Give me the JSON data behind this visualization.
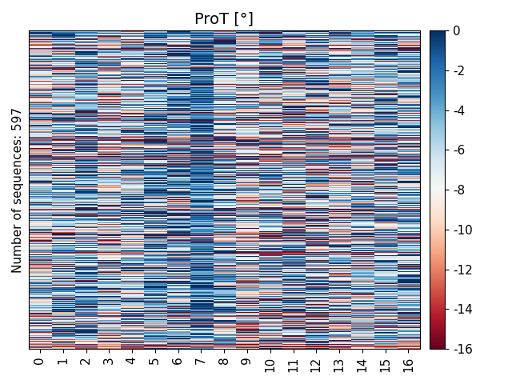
{
  "title": "ProT [°]",
  "ylabel": "Number of sequences: 597",
  "n_rows": 597,
  "n_cols": 17,
  "x_tick_labels": [
    "0",
    "1",
    "2",
    "3",
    "4",
    "5",
    "6",
    "7",
    "8",
    "9",
    "10",
    "11",
    "12",
    "13",
    "14",
    "15",
    "16"
  ],
  "vmin": -16,
  "vmax": 0,
  "cmap": "RdBu",
  "colorbar_ticks": [
    0,
    -2,
    -4,
    -6,
    -8,
    -10,
    -12,
    -14,
    -16
  ],
  "seed": 42,
  "title_fontsize": 14,
  "label_fontsize": 11,
  "tick_fontsize": 11,
  "col_means": [
    -7,
    -6,
    -5,
    -7,
    -6,
    -4,
    -4,
    -2,
    -6,
    -7,
    -6,
    -6,
    -6,
    -7,
    -6,
    -5,
    -5
  ],
  "col_stds": [
    4,
    4,
    4,
    4,
    4,
    4,
    5,
    3,
    5,
    4,
    5,
    5,
    5,
    4,
    4,
    4,
    4
  ],
  "figsize": [
    6.4,
    4.8
  ],
  "dpi": 100
}
